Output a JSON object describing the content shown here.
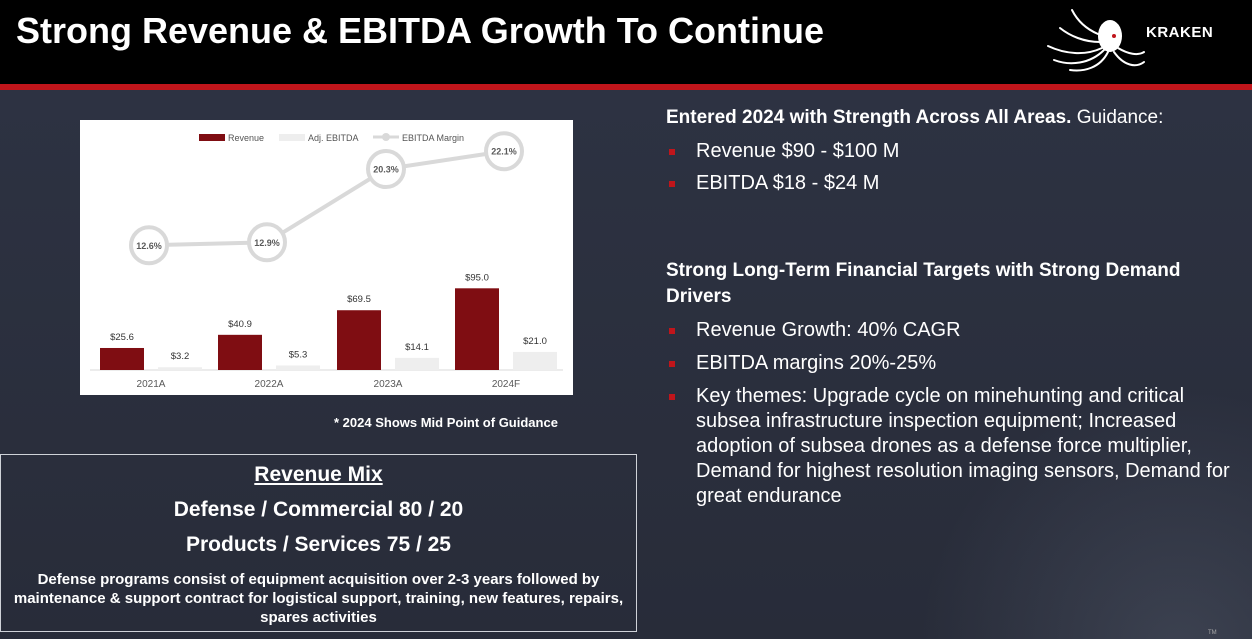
{
  "header": {
    "title": "Strong Revenue & EBITDA Growth To Continue",
    "logo_text": "KRAKEN"
  },
  "colors": {
    "accent_red": "#c0151b",
    "revenue_bar": "#7f0d12",
    "ebitda_bar": "#eeeeee",
    "margin_line": "#d9d9d9"
  },
  "chart_data": {
    "type": "bar",
    "categories": [
      "2021A",
      "2022A",
      "2023A",
      "2024F"
    ],
    "series": [
      {
        "name": "Revenue",
        "values": [
          25.6,
          40.9,
          69.5,
          95.0
        ],
        "labels": [
          "$25.6",
          "$40.9",
          "$69.5",
          "$95.0"
        ]
      },
      {
        "name": "Adj. EBITDA",
        "values": [
          3.2,
          5.3,
          14.1,
          21.0
        ],
        "labels": [
          "$3.2",
          "$5.3",
          "$14.1",
          "$21.0"
        ]
      },
      {
        "name": "EBITDA Margin",
        "type": "line",
        "values": [
          12.6,
          12.9,
          20.3,
          22.1
        ],
        "labels": [
          "12.6%",
          "12.9%",
          "20.3%",
          "22.1%"
        ]
      }
    ],
    "legend_position": "top",
    "grid": false,
    "ylim": [
      0,
      110
    ]
  },
  "chart_note": "* 2024 Shows Mid Point of Guidance",
  "revenue_mix": {
    "title": "Revenue Mix",
    "line1": "Defense / Commercial 80 / 20",
    "line2": "Products / Services 75 / 25",
    "description": "Defense programs consist of equipment acquisition over 2-3 years followed by maintenance & support contract for logistical support, training, new features, repairs, spares activities"
  },
  "guidance": {
    "heading_bold": "Entered 2024 with Strength Across All Areas.",
    "heading_rest": " Guidance:",
    "items": [
      "Revenue $90 - $100 M",
      "EBITDA $18 - $24 M"
    ]
  },
  "targets": {
    "heading": "Strong Long-Term Financial Targets with Strong Demand Drivers",
    "items": [
      "Revenue Growth: 40% CAGR",
      "EBITDA margins 20%-25%",
      "Key themes:  Upgrade cycle on minehunting and critical subsea infrastructure inspection equipment; Increased adoption of subsea drones as a defense force multiplier, Demand for highest resolution imaging sensors, Demand for great endurance"
    ]
  },
  "trademark": "TM"
}
